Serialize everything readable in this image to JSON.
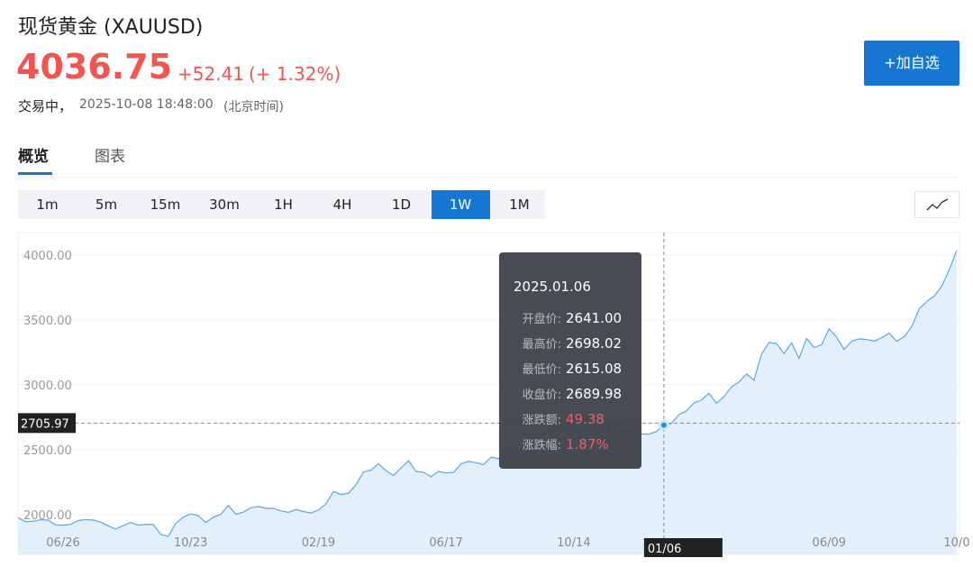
{
  "header": {
    "title": "现货黄金 (XAUUSD)",
    "price": "4036.75",
    "change": "+52.41",
    "change_pct": "(+ 1.32%)",
    "status": "交易中，",
    "time": "2025-10-08 18:48:00",
    "timezone": "(北京时间)",
    "watch_button": "+加自选"
  },
  "tabs": {
    "items": [
      "概览",
      "图表"
    ],
    "active": "概览"
  },
  "periods": {
    "items": [
      "1m",
      "5m",
      "15m",
      "30m",
      "1H",
      "4H",
      "1D",
      "1W",
      "1M"
    ],
    "active": "1W"
  },
  "chart_data": {
    "type": "area",
    "color": "#5aa7e6",
    "fill": "#e3f0fc",
    "grid": true,
    "ylim": [
      1694,
      4174
    ],
    "yticks": [
      {
        "value": 2000,
        "label": "2000.00"
      },
      {
        "value": 2500,
        "label": "2500.00"
      },
      {
        "value": 3000,
        "label": "3000.00"
      },
      {
        "value": 3500,
        "label": "3500.00"
      },
      {
        "value": 4000,
        "label": "4000.00"
      }
    ],
    "categories": [
      null,
      null,
      null,
      null,
      null,
      null,
      "06/26",
      null,
      null,
      null,
      null,
      null,
      null,
      null,
      null,
      null,
      null,
      null,
      null,
      null,
      null,
      null,
      null,
      "10/23",
      null,
      null,
      null,
      null,
      null,
      null,
      null,
      null,
      null,
      null,
      null,
      null,
      null,
      null,
      null,
      null,
      "02/19",
      null,
      null,
      null,
      null,
      null,
      null,
      null,
      null,
      null,
      null,
      null,
      null,
      null,
      null,
      null,
      null,
      "06/17",
      null,
      null,
      null,
      null,
      null,
      null,
      null,
      null,
      null,
      null,
      null,
      null,
      null,
      null,
      null,
      null,
      "10/14",
      null,
      null,
      null,
      null,
      null,
      null,
      null,
      null,
      null,
      null,
      null,
      "01/06",
      null,
      null,
      null,
      null,
      null,
      null,
      null,
      null,
      null,
      null,
      null,
      null,
      null,
      null,
      null,
      null,
      null,
      null,
      null,
      null,
      null,
      "06/09",
      null,
      null,
      null,
      null,
      null,
      null,
      null,
      null,
      null,
      null,
      null,
      null,
      null,
      null,
      null,
      null,
      "10/0"
    ],
    "values": [
      1977,
      1946,
      1948,
      1961,
      1958,
      1921,
      1919,
      1925,
      1955,
      1962,
      1959,
      1943,
      1914,
      1889,
      1915,
      1940,
      1919,
      1924,
      1925,
      1848,
      1832,
      1933,
      1981,
      2006,
      1993,
      1940,
      1981,
      2002,
      2072,
      2004,
      2019,
      2053,
      2063,
      2049,
      2049,
      2029,
      2018,
      2039,
      2024,
      2013,
      2035,
      2083,
      2179,
      2155,
      2165,
      2230,
      2329,
      2344,
      2392,
      2338,
      2301,
      2360,
      2415,
      2333,
      2327,
      2293,
      2333,
      2322,
      2326,
      2392,
      2411,
      2400,
      2386,
      2443,
      2431,
      2507,
      2512,
      2503,
      2497,
      2577,
      2621,
      2658,
      2653,
      2657,
      2721,
      2747,
      2736,
      2684,
      2563,
      2715,
      2650,
      2633,
      2648,
      2622,
      2621,
      2640,
      2690,
      2703,
      2771,
      2800,
      2861,
      2883,
      2936,
      2858,
      2910,
      2984,
      3022,
      3085,
      3037,
      3238,
      3327,
      3319,
      3241,
      3325,
      3205,
      3358,
      3289,
      3310,
      3433,
      3368,
      3274,
      3337,
      3355,
      3350,
      3337,
      3363,
      3398,
      3336,
      3371,
      3448,
      3587,
      3643,
      3685,
      3760,
      3887,
      4036.75
    ],
    "hover_index": 86,
    "crosshair_y": 2705.97,
    "tooltip": {
      "date": "2025.01.06",
      "rows": [
        {
          "label": "开盘价:",
          "value": "2641.00"
        },
        {
          "label": "最高价:",
          "value": "2698.02"
        },
        {
          "label": "最低价:",
          "value": "2615.08"
        },
        {
          "label": "收盘价:",
          "value": "2689.98"
        },
        {
          "label": "涨跌额:",
          "value": "49.38"
        },
        {
          "label": "涨跌幅:",
          "value": "1.87%"
        }
      ]
    }
  }
}
